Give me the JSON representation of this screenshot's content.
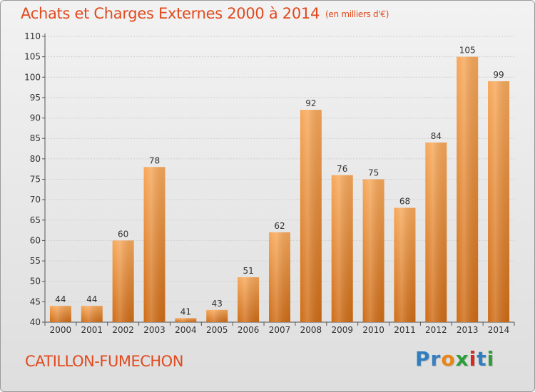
{
  "title": "Achats et Charges Externes 2000 à 2014",
  "subtitle": "(en milliers d'€)",
  "commune": "CATILLON-FUMECHON",
  "logo": {
    "letters": [
      "P",
      "r",
      "o",
      "x",
      "i",
      "t",
      "i"
    ],
    "colors": [
      "#2f7fc0",
      "#3a7fc0",
      "#e8861a",
      "#2e9e3a",
      "#d42a1c",
      "#2f7fc0",
      "#2e9e3a"
    ]
  },
  "colors": {
    "title": "#e04a1e",
    "bar_light": "#f7a85a",
    "bar_dark": "#cf6c16",
    "axis": "#555555",
    "grid": "#cfcfcf"
  },
  "chart_data": {
    "type": "bar",
    "categories": [
      "2000",
      "2001",
      "2002",
      "2003",
      "2004",
      "2005",
      "2006",
      "2007",
      "2008",
      "2009",
      "2010",
      "2011",
      "2012",
      "2013",
      "2014"
    ],
    "values": [
      44,
      44,
      60,
      78,
      41,
      43,
      51,
      62,
      92,
      76,
      75,
      68,
      84,
      105,
      99
    ],
    "value_labels": [
      "44",
      "44",
      "60",
      "78",
      "41",
      "43",
      "51",
      "62",
      "92",
      "76",
      "75",
      "68",
      "84",
      "105",
      "99"
    ],
    "y_ticks": [
      "40",
      "45",
      "50",
      "55",
      "60",
      "65",
      "70",
      "75",
      "80",
      "85",
      "90",
      "95",
      "100",
      "105",
      "110"
    ],
    "title": "Achats et Charges Externes 2000 à 2014",
    "xlabel": "",
    "ylabel": "",
    "ylim": [
      40,
      110
    ],
    "grid": "horizontal"
  }
}
